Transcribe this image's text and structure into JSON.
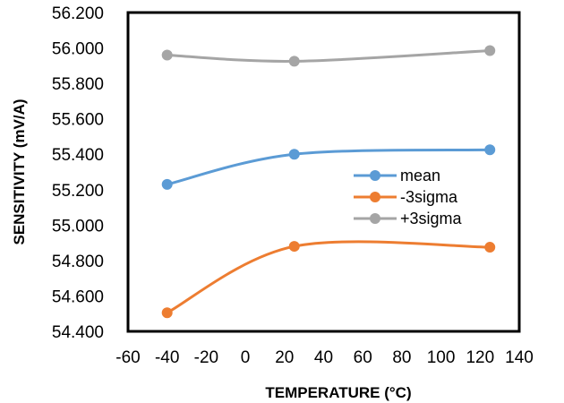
{
  "chart_data": {
    "type": "line",
    "xlabel": "TEMPERATURE  (°C)",
    "ylabel": "SENSITIVITY  (mV/A)",
    "xlim": [
      -60,
      140
    ],
    "ylim": [
      54.4,
      56.2
    ],
    "x_ticks": [
      "-60",
      "-40",
      "-20",
      "0",
      "20",
      "40",
      "60",
      "80",
      "100",
      "120",
      "140"
    ],
    "y_ticks": [
      "56.200",
      "56.000",
      "55.800",
      "55.600",
      "55.400",
      "55.200",
      "55.000",
      "54.800",
      "54.600",
      "54.400"
    ],
    "grid": false,
    "smooth": true,
    "legend_position": "inside-right",
    "x": [
      -40,
      25,
      125
    ],
    "series": [
      {
        "name": "mean",
        "color": "#5B9BD5",
        "values": [
          55.23,
          55.4,
          55.425
        ]
      },
      {
        "name": "-3sigma",
        "color": "#ED7D31",
        "values": [
          54.505,
          54.88,
          54.875
        ]
      },
      {
        "name": "+3sigma",
        "color": "#A5A5A5",
        "values": [
          55.96,
          55.925,
          55.985
        ]
      }
    ]
  }
}
